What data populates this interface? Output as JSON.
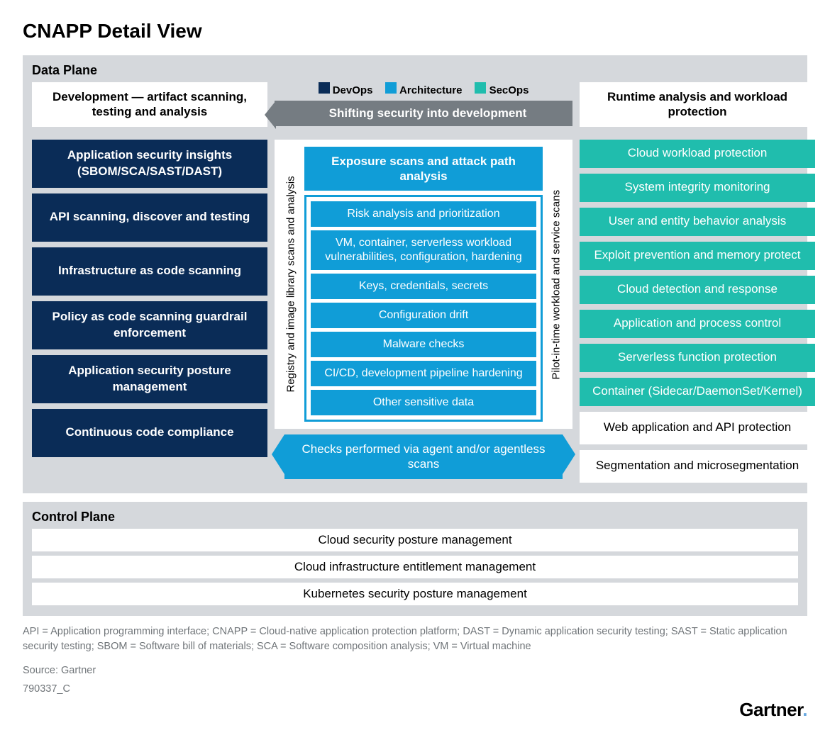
{
  "title": "CNAPP Detail View",
  "colors": {
    "devops": "#0a2c57",
    "architecture": "#109dd7",
    "secops": "#20bdad",
    "panel_bg": "#d5d8dc",
    "banner_grey": "#757c82",
    "white": "#ffffff",
    "text_grey": "#707579"
  },
  "legend": {
    "devops": "DevOps",
    "architecture": "Architecture",
    "secops": "SecOps"
  },
  "data_plane": {
    "title": "Data Plane",
    "shift_banner": "Shifting security into development",
    "development": {
      "header": "Development — artifact scanning, testing and analysis",
      "items": [
        "Application security insights (SBOM/SCA/SAST/DAST)",
        "API scanning, discover and testing",
        "Infrastructure as code scanning",
        "Policy as code scanning guardrail enforcement",
        "Application security posture management",
        "Continuous code compliance"
      ]
    },
    "middle": {
      "left_vlabel": "Registry and image library scans and analysis",
      "right_vlabel": "Pilot-in-time workload and service scans",
      "head": "Exposure scans and attack path analysis",
      "items": [
        "Risk analysis and prioritization",
        "VM, container, serverless workload vulnerabilities, configuration,  hardening",
        "Keys, credentials, secrets",
        "Configuration drift",
        "Malware checks",
        "CI/CD, development pipeline hardening",
        "Other sensitive data"
      ],
      "bottom_arrow": "Checks performed via agent and/or agentless scans"
    },
    "runtime": {
      "header": "Runtime analysis and workload protection",
      "teal_items": [
        "Cloud workload protection",
        "System integrity monitoring",
        "User and entity behavior analysis",
        "Exploit prevention and memory protect",
        "Cloud detection and response",
        "Application and process control",
        "Serverless function protection",
        "Container (Sidecar/DaemonSet/Kernel)"
      ],
      "white_items": [
        "Web application and API protection",
        "Segmentation and microsegmentation"
      ]
    }
  },
  "control_plane": {
    "title": "Control Plane",
    "rows": [
      "Cloud security posture management",
      "Cloud infrastructure entitlement management",
      "Kubernetes security posture management"
    ]
  },
  "definitions": "API = Application programming interface; CNAPP = Cloud-native application protection platform; DAST = Dynamic application security testing; SAST = Static application security testing; SBOM = Software bill of materials; SCA = Software composition analysis; VM = Virtual machine",
  "source": "Source: Gartner",
  "doc_id": "790337_C",
  "brand": "Gartner"
}
